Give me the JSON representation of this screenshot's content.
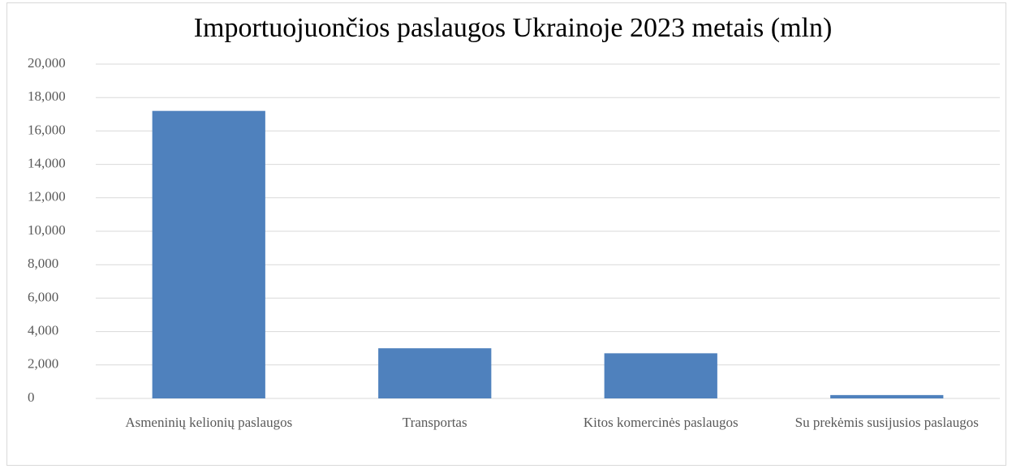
{
  "chart_data": {
    "type": "bar",
    "title": "Importuojuončios paslaugos Ukrainoje 2023 metais (mln)",
    "categories": [
      "Asmeninių kelionių paslaugos",
      "Transportas",
      "Kitos komercinės paslaugos",
      "Su prekėmis susijusios paslaugos"
    ],
    "values": [
      17200,
      3000,
      2700,
      200
    ],
    "color": "#4f81bd",
    "ylim": [
      0,
      20000
    ],
    "yticks": [
      0,
      {
        "value": 2000,
        "label": "2,000"
      },
      {
        "value": 4000,
        "label": "4,000"
      },
      {
        "value": 6000,
        "label": "6,000"
      },
      {
        "value": 8000,
        "label": "8,000"
      },
      {
        "value": 10000,
        "label": "10,000"
      },
      {
        "value": 12000,
        "label": "12,000"
      },
      {
        "value": 14000,
        "label": "14,000"
      },
      {
        "value": 16000,
        "label": "16,000"
      },
      {
        "value": 18000,
        "label": "18,000"
      },
      {
        "value": 20000,
        "label": "20,000"
      }
    ],
    "grid": true
  }
}
